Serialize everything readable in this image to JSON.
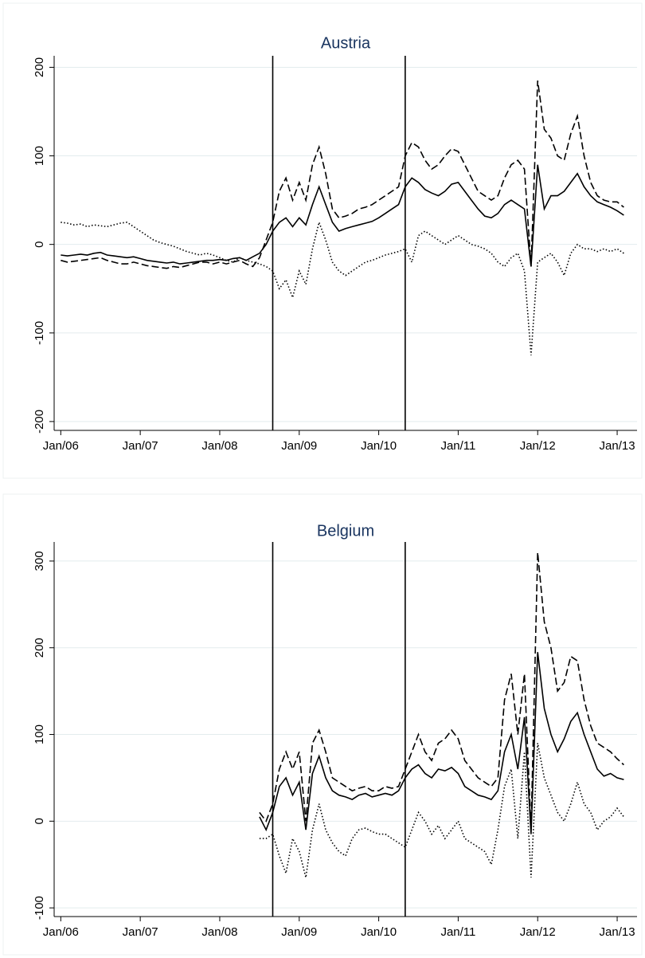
{
  "chart_data": [
    {
      "type": "line",
      "title": "Austria",
      "x": [
        "2006-01",
        "2006-02",
        "2006-03",
        "2006-04",
        "2006-05",
        "2006-06",
        "2006-07",
        "2006-08",
        "2006-09",
        "2006-10",
        "2006-11",
        "2006-12",
        "2007-01",
        "2007-02",
        "2007-03",
        "2007-04",
        "2007-05",
        "2007-06",
        "2007-07",
        "2007-08",
        "2007-09",
        "2007-10",
        "2007-11",
        "2007-12",
        "2008-01",
        "2008-02",
        "2008-03",
        "2008-04",
        "2008-05",
        "2008-06",
        "2008-07",
        "2008-08",
        "2008-09",
        "2008-10",
        "2008-11",
        "2008-12",
        "2009-01",
        "2009-02",
        "2009-03",
        "2009-04",
        "2009-05",
        "2009-06",
        "2009-07",
        "2009-08",
        "2009-09",
        "2009-10",
        "2009-11",
        "2009-12",
        "2010-01",
        "2010-02",
        "2010-03",
        "2010-04",
        "2010-05",
        "2010-06",
        "2010-07",
        "2010-08",
        "2010-09",
        "2010-10",
        "2010-11",
        "2010-12",
        "2011-01",
        "2011-02",
        "2011-03",
        "2011-04",
        "2011-05",
        "2011-06",
        "2011-07",
        "2011-08",
        "2011-09",
        "2011-10",
        "2011-11",
        "2011-12",
        "2012-01",
        "2012-02",
        "2012-03",
        "2012-04",
        "2012-05",
        "2012-06",
        "2012-07",
        "2012-08",
        "2012-09",
        "2012-10",
        "2012-11",
        "2012-12",
        "2013-01",
        "2013-02"
      ],
      "series": [
        {
          "color": "#000000",
          "dash": "solid",
          "values": [
            -12,
            -13,
            -12,
            -11,
            -12,
            -10,
            -9,
            -12,
            -13,
            -14,
            -15,
            -14,
            -16,
            -18,
            -19,
            -20,
            -21,
            -20,
            -22,
            -21,
            -20,
            -19,
            -18,
            -18,
            -17,
            -18,
            -16,
            -15,
            -18,
            -14,
            -10,
            0,
            15,
            25,
            30,
            20,
            30,
            22,
            45,
            65,
            45,
            25,
            15,
            18,
            20,
            22,
            24,
            26,
            30,
            35,
            40,
            45,
            65,
            75,
            70,
            62,
            58,
            55,
            60,
            68,
            70,
            60,
            50,
            40,
            32,
            30,
            35,
            45,
            50,
            45,
            40,
            -25,
            90,
            40,
            55,
            55,
            60,
            70,
            80,
            65,
            55,
            48,
            45,
            42,
            38,
            33
          ]
        },
        {
          "color": "#000000",
          "dash": "dashed",
          "values": [
            -18,
            -20,
            -19,
            -18,
            -17,
            -16,
            -15,
            -18,
            -20,
            -22,
            -22,
            -20,
            -22,
            -24,
            -25,
            -26,
            -27,
            -25,
            -26,
            -24,
            -22,
            -20,
            -20,
            -22,
            -20,
            -22,
            -20,
            -18,
            -22,
            -25,
            -15,
            5,
            25,
            60,
            75,
            50,
            70,
            50,
            90,
            110,
            80,
            40,
            30,
            32,
            35,
            40,
            42,
            45,
            50,
            55,
            60,
            65,
            100,
            115,
            110,
            95,
            85,
            90,
            100,
            108,
            105,
            90,
            75,
            60,
            55,
            50,
            55,
            75,
            90,
            95,
            85,
            -25,
            185,
            130,
            120,
            100,
            95,
            125,
            145,
            100,
            70,
            55,
            50,
            48,
            48,
            42
          ]
        },
        {
          "color": "#000000",
          "dash": "dotted",
          "values": [
            25,
            24,
            22,
            23,
            20,
            22,
            21,
            20,
            22,
            24,
            25,
            20,
            15,
            10,
            5,
            2,
            0,
            -2,
            -5,
            -8,
            -10,
            -12,
            -10,
            -12,
            -15,
            -18,
            -20,
            -15,
            -18,
            -20,
            -22,
            -25,
            -30,
            -50,
            -40,
            -60,
            -30,
            -45,
            -5,
            25,
            5,
            -20,
            -30,
            -35,
            -30,
            -25,
            -20,
            -18,
            -15,
            -12,
            -10,
            -8,
            -5,
            -20,
            10,
            15,
            10,
            5,
            0,
            5,
            10,
            5,
            0,
            -2,
            -5,
            -10,
            -20,
            -25,
            -15,
            -10,
            -30,
            -125,
            -20,
            -15,
            -10,
            -20,
            -35,
            -10,
            0,
            -5,
            -5,
            -8,
            -5,
            -8,
            -5,
            -10
          ]
        }
      ],
      "vlines": [
        "2008-09",
        "2010-05"
      ],
      "xlim": [
        "2005-12",
        "2013-04"
      ],
      "xticks": [
        {
          "value": "2006-01",
          "label": "Jan/06"
        },
        {
          "value": "2007-01",
          "label": "Jan/07"
        },
        {
          "value": "2008-01",
          "label": "Jan/08"
        },
        {
          "value": "2009-01",
          "label": "Jan/09"
        },
        {
          "value": "2010-01",
          "label": "Jan/10"
        },
        {
          "value": "2011-01",
          "label": "Jan/11"
        },
        {
          "value": "2012-01",
          "label": "Jan/12"
        },
        {
          "value": "2013-01",
          "label": "Jan/13"
        }
      ],
      "ylim": [
        -210,
        213
      ],
      "yticks": [
        -200,
        -100,
        0,
        100,
        200
      ],
      "grid": true
    },
    {
      "type": "line",
      "title": "Belgium",
      "x": [
        "2008-07",
        "2008-08",
        "2008-09",
        "2008-10",
        "2008-11",
        "2008-12",
        "2009-01",
        "2009-02",
        "2009-03",
        "2009-04",
        "2009-05",
        "2009-06",
        "2009-07",
        "2009-08",
        "2009-09",
        "2009-10",
        "2009-11",
        "2009-12",
        "2010-01",
        "2010-02",
        "2010-03",
        "2010-04",
        "2010-05",
        "2010-06",
        "2010-07",
        "2010-08",
        "2010-09",
        "2010-10",
        "2010-11",
        "2010-12",
        "2011-01",
        "2011-02",
        "2011-03",
        "2011-04",
        "2011-05",
        "2011-06",
        "2011-07",
        "2011-08",
        "2011-09",
        "2011-10",
        "2011-11",
        "2011-12",
        "2012-01",
        "2012-02",
        "2012-03",
        "2012-04",
        "2012-05",
        "2012-06",
        "2012-07",
        "2012-08",
        "2012-09",
        "2012-10",
        "2012-11",
        "2012-12",
        "2013-01",
        "2013-02"
      ],
      "series": [
        {
          "color": "#000000",
          "dash": "solid",
          "values": [
            5,
            -10,
            10,
            40,
            50,
            30,
            45,
            -10,
            55,
            75,
            50,
            35,
            30,
            28,
            25,
            30,
            32,
            28,
            30,
            32,
            30,
            35,
            50,
            60,
            65,
            55,
            50,
            60,
            58,
            62,
            55,
            40,
            35,
            30,
            28,
            25,
            35,
            80,
            100,
            60,
            120,
            -15,
            195,
            130,
            100,
            80,
            95,
            115,
            125,
            100,
            80,
            60,
            52,
            55,
            50,
            48
          ]
        },
        {
          "color": "#000000",
          "dash": "dashed",
          "values": [
            10,
            0,
            20,
            60,
            80,
            60,
            80,
            0,
            90,
            105,
            80,
            50,
            45,
            40,
            35,
            38,
            40,
            35,
            35,
            40,
            38,
            40,
            60,
            80,
            100,
            80,
            70,
            90,
            95,
            105,
            95,
            70,
            60,
            50,
            45,
            40,
            50,
            140,
            170,
            100,
            170,
            -10,
            310,
            230,
            200,
            150,
            160,
            190,
            185,
            140,
            110,
            90,
            85,
            80,
            72,
            65
          ]
        },
        {
          "color": "#000000",
          "dash": "dotted",
          "values": [
            -20,
            -20,
            -15,
            -40,
            -60,
            -20,
            -35,
            -65,
            -10,
            20,
            -10,
            -25,
            -35,
            -40,
            -20,
            -10,
            -8,
            -12,
            -15,
            -15,
            -20,
            -25,
            -30,
            -10,
            10,
            0,
            -15,
            -5,
            -20,
            -10,
            0,
            -20,
            -25,
            -30,
            -35,
            -50,
            -10,
            40,
            60,
            -20,
            80,
            -65,
            90,
            50,
            30,
            10,
            0,
            20,
            45,
            20,
            10,
            -10,
            0,
            5,
            15,
            5
          ]
        }
      ],
      "vlines": [
        "2008-09",
        "2010-05"
      ],
      "xlim": [
        "2005-12",
        "2013-04"
      ],
      "xticks": [
        {
          "value": "2006-01",
          "label": "Jan/06"
        },
        {
          "value": "2007-01",
          "label": "Jan/07"
        },
        {
          "value": "2008-01",
          "label": "Jan/08"
        },
        {
          "value": "2009-01",
          "label": "Jan/09"
        },
        {
          "value": "2010-01",
          "label": "Jan/10"
        },
        {
          "value": "2011-01",
          "label": "Jan/11"
        },
        {
          "value": "2012-01",
          "label": "Jan/12"
        },
        {
          "value": "2013-01",
          "label": "Jan/13"
        }
      ],
      "ylim": [
        -110,
        322
      ],
      "yticks": [
        -100,
        0,
        100,
        200,
        300
      ],
      "grid": true
    }
  ]
}
